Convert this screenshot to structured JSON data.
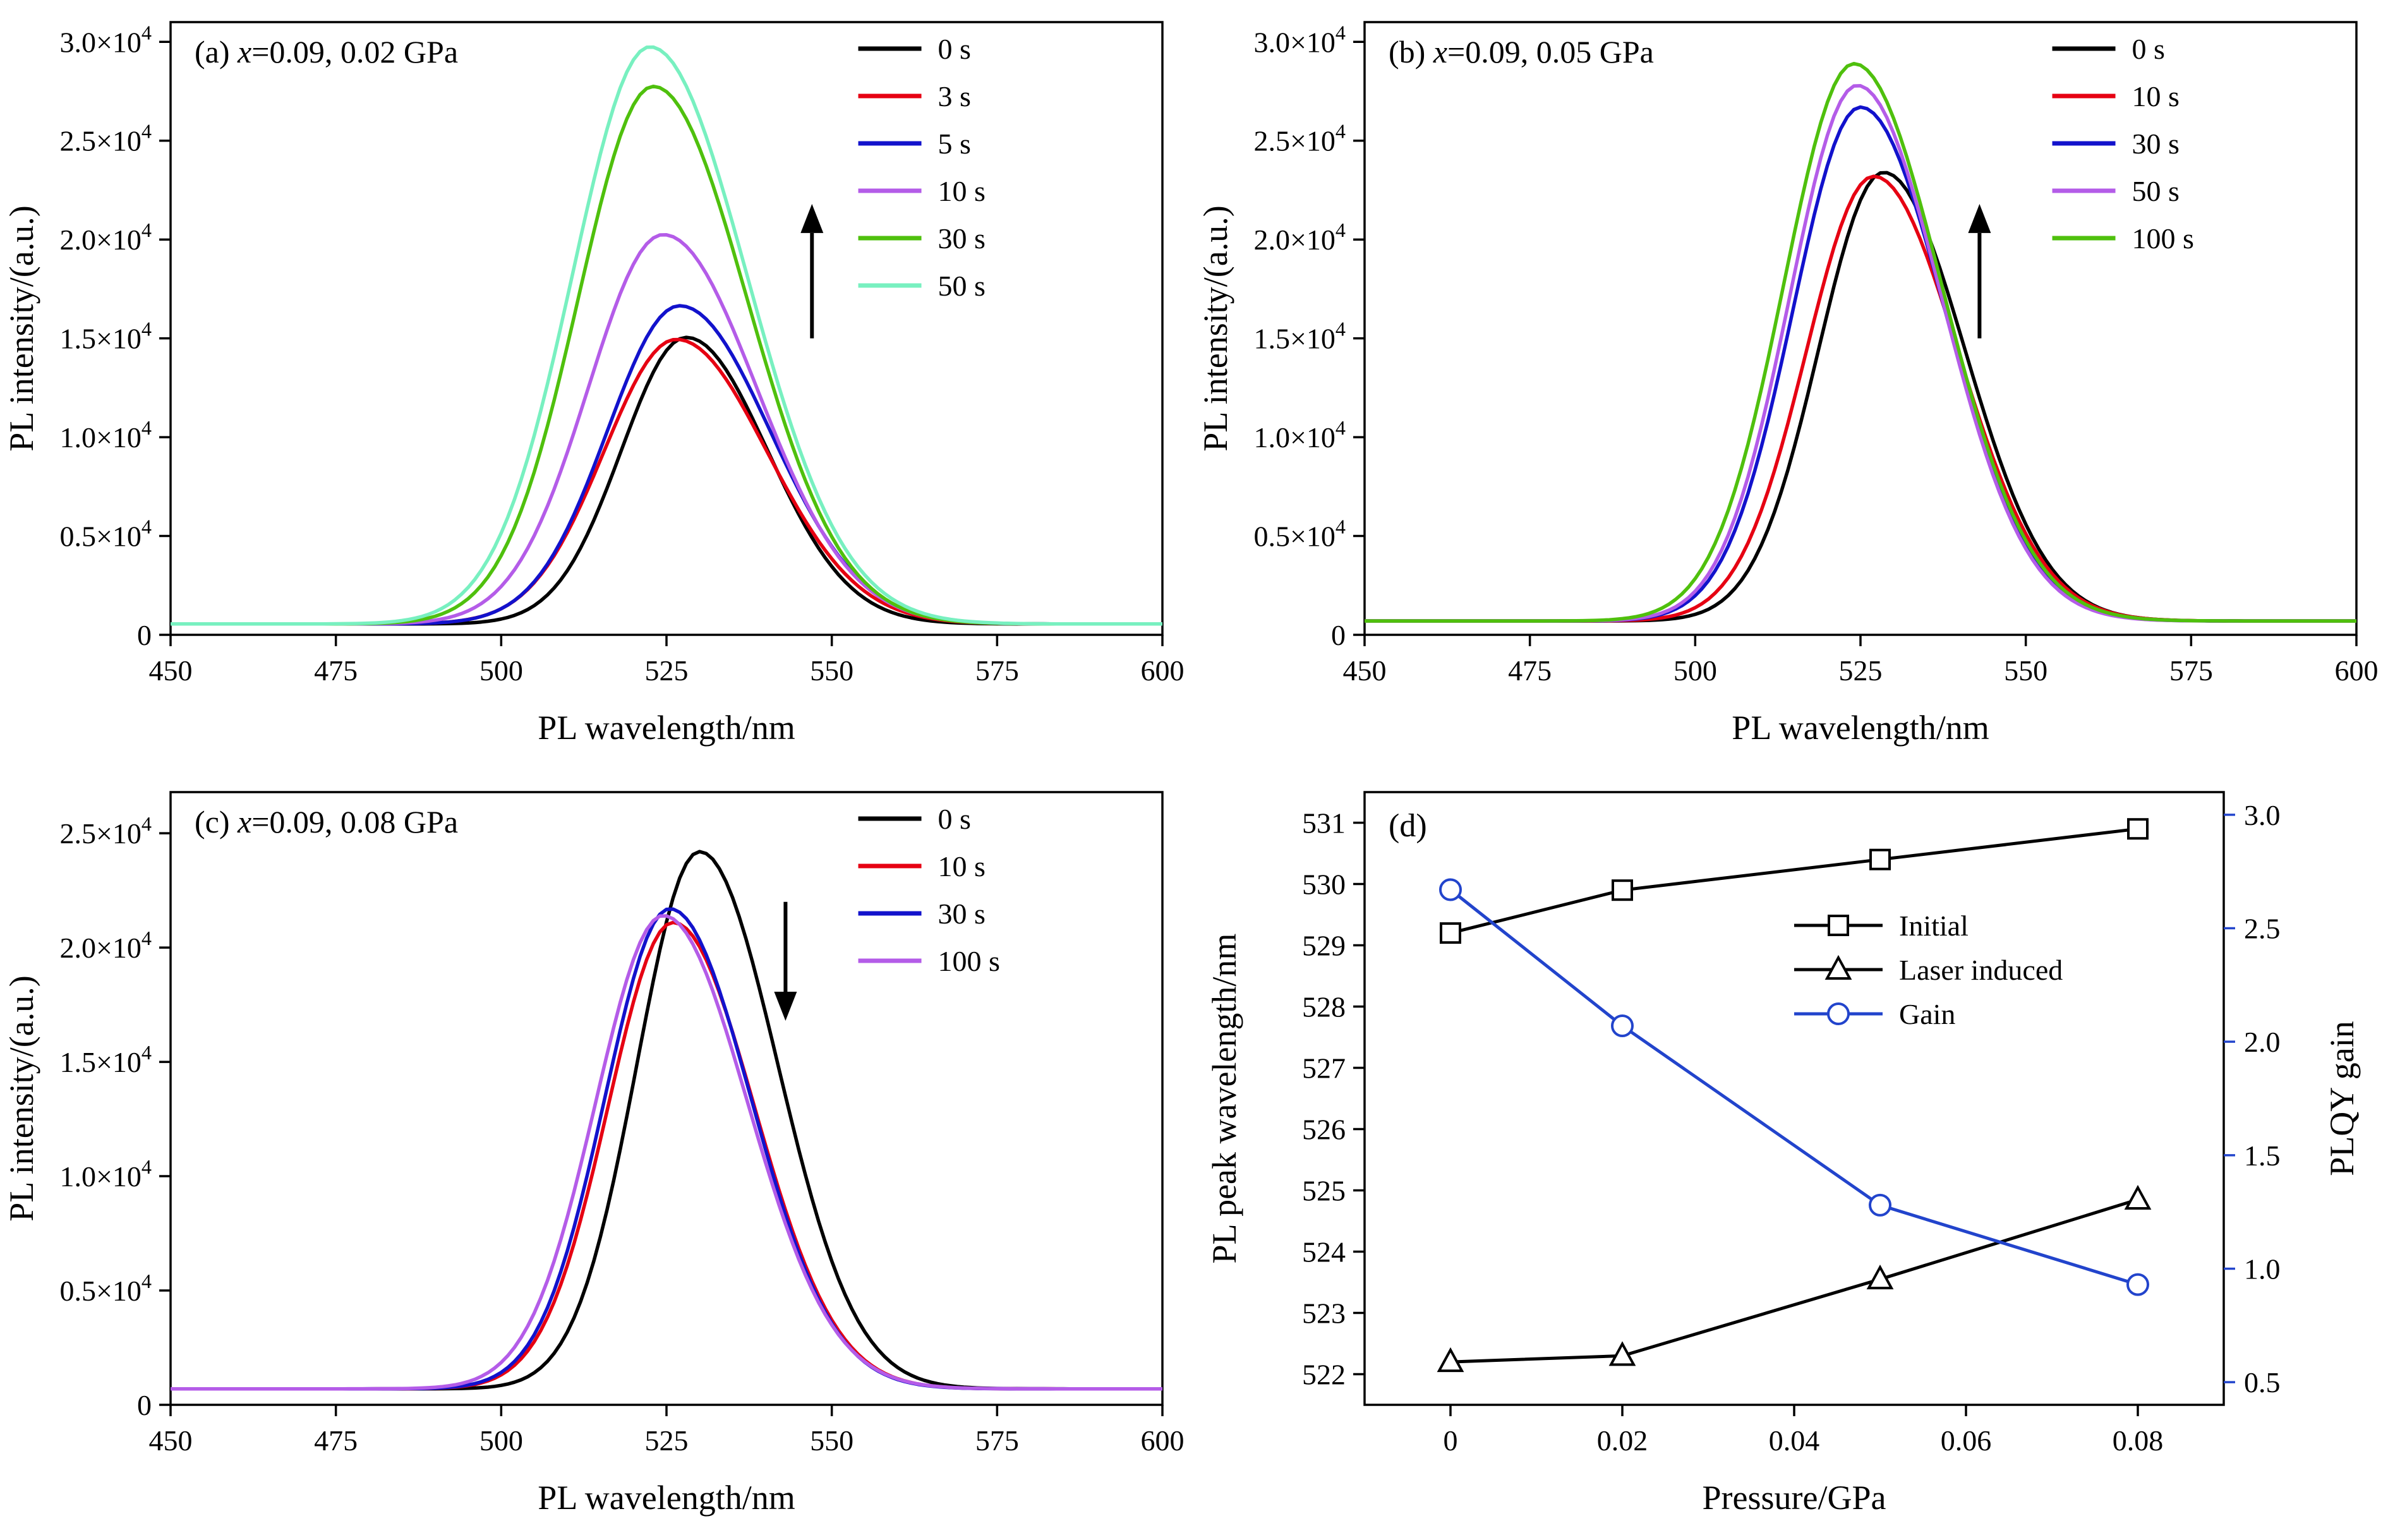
{
  "figure": {
    "background": "#ffffff"
  },
  "chart_data": [
    {
      "id": "a",
      "type": "line",
      "panel_label": "(a)",
      "title": {
        "var": "x",
        "rest": "=0.09, 0.02 GPa"
      },
      "xlabel": "PL wavelength/nm",
      "ylabel": "PL intensity/(a.u.)",
      "xlim": [
        450,
        600
      ],
      "ylim": [
        0,
        31000
      ],
      "xticks": [
        {
          "v": 450,
          "label": "450"
        },
        {
          "v": 475,
          "label": "475"
        },
        {
          "v": 500,
          "label": "500"
        },
        {
          "v": 525,
          "label": "525"
        },
        {
          "v": 550,
          "label": "550"
        },
        {
          "v": 575,
          "label": "575"
        },
        {
          "v": 600,
          "label": "600"
        }
      ],
      "yticks": [
        {
          "v": 0,
          "label": "0"
        },
        {
          "v": 5000,
          "label": "0.5×10^4"
        },
        {
          "v": 10000,
          "label": "1.0×10^4"
        },
        {
          "v": 15000,
          "label": "1.5×10^4"
        },
        {
          "v": 20000,
          "label": "2.0×10^4"
        },
        {
          "v": 25000,
          "label": "2.5×10^4"
        },
        {
          "v": 30000,
          "label": "3.0×10^4"
        }
      ],
      "arrow": {
        "dir": "up",
        "x": 547,
        "y_from": 15000,
        "y_to": 21800
      },
      "series": [
        {
          "name": "0 s",
          "color": "#000000",
          "peak": 528.0,
          "amp": 14500,
          "fwhm": 26,
          "baseline": 550
        },
        {
          "name": "3 s",
          "color": "#e60012",
          "peak": 526.5,
          "amp": 14400,
          "fwhm": 29,
          "baseline": 550
        },
        {
          "name": "5 s",
          "color": "#1212cc",
          "peak": 527.0,
          "amp": 16100,
          "fwhm": 29,
          "baseline": 550
        },
        {
          "name": "10 s",
          "color": "#b45ce8",
          "peak": 524.5,
          "amp": 19700,
          "fwhm": 30,
          "baseline": 550
        },
        {
          "name": "30 s",
          "color": "#4fc00d",
          "peak": 523.0,
          "amp": 27200,
          "fwhm": 30,
          "baseline": 550
        },
        {
          "name": "50 s",
          "color": "#78f0c0",
          "peak": 522.5,
          "amp": 29200,
          "fwhm": 31,
          "baseline": 550
        }
      ]
    },
    {
      "id": "b",
      "type": "line",
      "panel_label": "(b)",
      "title": {
        "var": "x",
        "rest": "=0.09, 0.05 GPa"
      },
      "xlabel": "PL wavelength/nm",
      "ylabel": "PL intensity/(a.u.)",
      "xlim": [
        450,
        600
      ],
      "ylim": [
        0,
        31000
      ],
      "xticks": [
        {
          "v": 450,
          "label": "450"
        },
        {
          "v": 475,
          "label": "475"
        },
        {
          "v": 500,
          "label": "500"
        },
        {
          "v": 525,
          "label": "525"
        },
        {
          "v": 550,
          "label": "550"
        },
        {
          "v": 575,
          "label": "575"
        },
        {
          "v": 600,
          "label": "600"
        }
      ],
      "yticks": [
        {
          "v": 0,
          "label": "0"
        },
        {
          "v": 5000,
          "label": "0.5×10^4"
        },
        {
          "v": 10000,
          "label": "1.0×10^4"
        },
        {
          "v": 15000,
          "label": "1.5×10^4"
        },
        {
          "v": 20000,
          "label": "2.0×10^4"
        },
        {
          "v": 25000,
          "label": "2.5×10^4"
        },
        {
          "v": 30000,
          "label": "3.0×10^4"
        }
      ],
      "arrow": {
        "dir": "up",
        "x": 543,
        "y_from": 15000,
        "y_to": 21800
      },
      "series": [
        {
          "name": "0 s",
          "color": "#000000",
          "peak": 528.5,
          "amp": 22700,
          "fwhm": 26,
          "baseline": 700
        },
        {
          "name": "10 s",
          "color": "#e60012",
          "peak": 527.0,
          "amp": 22500,
          "fwhm": 27,
          "baseline": 700
        },
        {
          "name": "30 s",
          "color": "#1212cc",
          "peak": 525.0,
          "amp": 26000,
          "fwhm": 27,
          "baseline": 700
        },
        {
          "name": "50 s",
          "color": "#b45ce8",
          "peak": 524.5,
          "amp": 27100,
          "fwhm": 27,
          "baseline": 700
        },
        {
          "name": "100 s",
          "color": "#4fc00d",
          "peak": 524.0,
          "amp": 28200,
          "fwhm": 28,
          "baseline": 700
        }
      ]
    },
    {
      "id": "c",
      "type": "line",
      "panel_label": "(c)",
      "title": {
        "var": "x",
        "rest": "=0.09, 0.08 GPa"
      },
      "xlabel": "PL wavelength/nm",
      "ylabel": "PL intensity/(a.u.)",
      "xlim": [
        450,
        600
      ],
      "ylim": [
        0,
        26800
      ],
      "xticks": [
        {
          "v": 450,
          "label": "450"
        },
        {
          "v": 475,
          "label": "475"
        },
        {
          "v": 500,
          "label": "500"
        },
        {
          "v": 525,
          "label": "525"
        },
        {
          "v": 550,
          "label": "550"
        },
        {
          "v": 575,
          "label": "575"
        },
        {
          "v": 600,
          "label": "600"
        }
      ],
      "yticks": [
        {
          "v": 0,
          "label": "0"
        },
        {
          "v": 5000,
          "label": "0.5×10^4"
        },
        {
          "v": 10000,
          "label": "1.0×10^4"
        },
        {
          "v": 15000,
          "label": "1.5×10^4"
        },
        {
          "v": 20000,
          "label": "2.0×10^4"
        },
        {
          "v": 25000,
          "label": "2.5×10^4"
        }
      ],
      "arrow": {
        "dir": "down",
        "x": 543,
        "y_from": 22000,
        "y_to": 16800
      },
      "series": [
        {
          "name": "0 s",
          "color": "#000000",
          "peak": 530.0,
          "amp": 23500,
          "fwhm": 25,
          "baseline": 700
        },
        {
          "name": "10 s",
          "color": "#e60012",
          "peak": 526.0,
          "amp": 20400,
          "fwhm": 26,
          "baseline": 700
        },
        {
          "name": "30 s",
          "color": "#1212cc",
          "peak": 525.5,
          "amp": 21000,
          "fwhm": 26,
          "baseline": 700
        },
        {
          "name": "100 s",
          "color": "#b45ce8",
          "peak": 524.5,
          "amp": 20700,
          "fwhm": 27,
          "baseline": 700
        }
      ]
    },
    {
      "id": "d",
      "type": "scatter-line",
      "panel_label": "(d)",
      "xlabel": "Pressure/GPa",
      "ylabel_left": "PL peak wavelength/nm",
      "ylabel_right": "PLQY gain",
      "right_color": "#2244cc",
      "xlim": [
        -0.01,
        0.09
      ],
      "ylim_left": [
        521.5,
        531.5
      ],
      "ylim_right": [
        0.4,
        3.1
      ],
      "xticks": [
        {
          "v": 0,
          "label": "0"
        },
        {
          "v": 0.02,
          "label": "0.02"
        },
        {
          "v": 0.04,
          "label": "0.04"
        },
        {
          "v": 0.06,
          "label": "0.06"
        },
        {
          "v": 0.08,
          "label": "0.08"
        }
      ],
      "yticks_left": [
        {
          "v": 522,
          "label": "522"
        },
        {
          "v": 523,
          "label": "523"
        },
        {
          "v": 524,
          "label": "524"
        },
        {
          "v": 525,
          "label": "525"
        },
        {
          "v": 526,
          "label": "526"
        },
        {
          "v": 527,
          "label": "527"
        },
        {
          "v": 528,
          "label": "528"
        },
        {
          "v": 529,
          "label": "529"
        },
        {
          "v": 530,
          "label": "530"
        },
        {
          "v": 531,
          "label": "531"
        }
      ],
      "yticks_right": [
        {
          "v": 0.5,
          "label": "0.5"
        },
        {
          "v": 1.0,
          "label": "1.0"
        },
        {
          "v": 1.5,
          "label": "1.5"
        },
        {
          "v": 2.0,
          "label": "2.0"
        },
        {
          "v": 2.5,
          "label": "2.5"
        },
        {
          "v": 3.0,
          "label": "3.0"
        }
      ],
      "x": [
        0,
        0.02,
        0.05,
        0.08
      ],
      "series": [
        {
          "name": "Initial",
          "axis": "left",
          "marker": "square",
          "color": "#000000",
          "values": [
            529.2,
            529.9,
            530.4,
            530.9
          ]
        },
        {
          "name": "Laser induced",
          "axis": "left",
          "marker": "triangle",
          "color": "#000000",
          "values": [
            522.2,
            522.3,
            523.55,
            524.85
          ]
        },
        {
          "name": "Gain",
          "axis": "right",
          "marker": "circle",
          "color": "#2244cc",
          "values": [
            2.67,
            2.07,
            1.28,
            0.93
          ]
        }
      ]
    }
  ]
}
